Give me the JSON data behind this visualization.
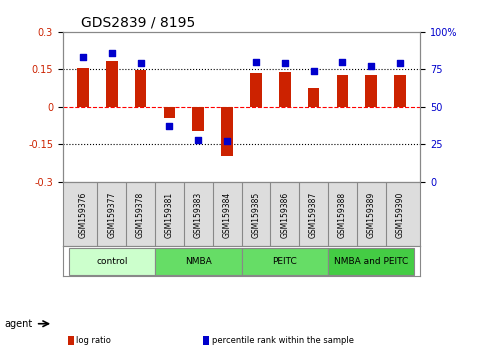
{
  "title": "GDS2839 / 8195",
  "samples": [
    "GSM159376",
    "GSM159377",
    "GSM159378",
    "GSM159381",
    "GSM159383",
    "GSM159384",
    "GSM159385",
    "GSM159386",
    "GSM159387",
    "GSM159388",
    "GSM159389",
    "GSM159390"
  ],
  "log_ratio": [
    0.157,
    0.185,
    0.148,
    -0.045,
    -0.098,
    -0.195,
    0.137,
    0.138,
    0.075,
    0.128,
    0.128,
    0.128
  ],
  "percentile": [
    83,
    86,
    79,
    37,
    28,
    27,
    80,
    79,
    74,
    80,
    77,
    79
  ],
  "bar_color": "#cc2200",
  "dot_color": "#0000cc",
  "ylim_left": [
    -0.3,
    0.3
  ],
  "ylim_right": [
    0,
    100
  ],
  "yticks_left": [
    -0.3,
    -0.15,
    0,
    0.15,
    0.3
  ],
  "yticks_right": [
    0,
    25,
    50,
    75,
    100
  ],
  "hlines": [
    0.15,
    0,
    -0.15
  ],
  "hline_colors": [
    "black",
    "red",
    "black"
  ],
  "hline_styles": [
    "dotted",
    "dashed",
    "dotted"
  ],
  "groups": [
    {
      "label": "control",
      "start": 0,
      "end": 3,
      "color": "#ccffcc"
    },
    {
      "label": "NMBA",
      "start": 3,
      "end": 6,
      "color": "#66dd66"
    },
    {
      "label": "PEITC",
      "start": 6,
      "end": 9,
      "color": "#66dd66"
    },
    {
      "label": "NMBA and PEITC",
      "start": 9,
      "end": 12,
      "color": "#44cc44"
    }
  ],
  "agent_label": "agent",
  "legend_entries": [
    {
      "color": "#cc2200",
      "label": "log ratio"
    },
    {
      "color": "#0000cc",
      "label": "percentile rank within the sample"
    }
  ],
  "background_color": "#ffffff",
  "plot_bg_color": "#ffffff",
  "spine_color": "#888888"
}
